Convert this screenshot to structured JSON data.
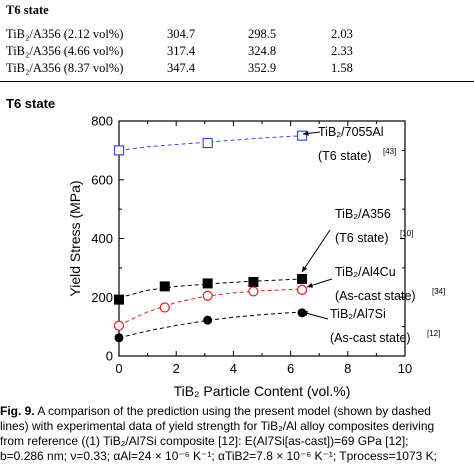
{
  "table": {
    "header": "T6 state",
    "rows": [
      {
        "name": "TiB₂/A356 (2.12 vol%)",
        "a": "304.7",
        "b": "298.5",
        "c": "2.03"
      },
      {
        "name": "TiB₂/A356 (4.66 vol%)",
        "a": "317.4",
        "b": "324.8",
        "c": "2.33"
      },
      {
        "name": "TiB₂/A356 (8.37 vol%)",
        "a": "347.4",
        "b": "352.9",
        "c": "1.58"
      }
    ]
  },
  "section_title": "T6 state",
  "chart_data": {
    "type": "scatter",
    "xlabel": "TiB₂ Particle Content (vol.%)",
    "ylabel": "Yield Stress (MPa)",
    "xlim": [
      0,
      10
    ],
    "ylim": [
      0,
      800
    ],
    "xticks": [
      "0",
      "2",
      "4",
      "6",
      "8",
      "10"
    ],
    "yticks": [
      "0",
      "200",
      "400",
      "600",
      "800"
    ],
    "series": [
      {
        "name": "TiB₂/7055Al (T6 state)[43]",
        "marker": "open-square",
        "color": "#3050e0",
        "x": [
          0,
          3.1,
          6.4
        ],
        "y": [
          700,
          725,
          750
        ],
        "model_x": [
          0,
          1,
          2,
          3,
          4,
          5,
          6.4
        ],
        "model_y": [
          700,
          712,
          720,
          727,
          735,
          742,
          750
        ]
      },
      {
        "name": "TiB₂/A356 (T6 state)[10]",
        "marker": "filled-square",
        "color": "#000000",
        "x": [
          0,
          1.6,
          3.1,
          4.7,
          6.4
        ],
        "y": [
          192,
          237,
          247,
          252,
          262
        ],
        "model_x": [
          0,
          1,
          2,
          3,
          4,
          5,
          6.4
        ],
        "model_y": [
          198,
          224,
          237,
          244,
          251,
          256,
          262
        ]
      },
      {
        "name": "TiB₂/Al4Cu (As-cast state)[34]",
        "marker": "open-circle",
        "color": "#e02020",
        "x": [
          0,
          1.6,
          3.1,
          4.7,
          6.4
        ],
        "y": [
          103,
          165,
          205,
          220,
          225
        ],
        "model_x": [
          0,
          1,
          2,
          3,
          4,
          5,
          6.4
        ],
        "model_y": [
          105,
          150,
          182,
          203,
          215,
          222,
          228
        ]
      },
      {
        "name": "TiB₂/Al7Si (As-cast state)[12]",
        "marker": "filled-circle",
        "color": "#000000",
        "x": [
          0,
          3.1,
          6.4
        ],
        "y": [
          62,
          122,
          147
        ],
        "model_x": [
          0,
          1,
          2,
          3,
          4,
          5,
          6.4
        ],
        "model_y": [
          62,
          85,
          104,
          120,
          132,
          141,
          150
        ]
      }
    ],
    "annotations": [
      {
        "line1": "TiB₂/7055Al",
        "line2": "(T6 state)",
        "ref": "[43]"
      },
      {
        "line1": "TiB₂/A356",
        "line2": "(T6 state)",
        "ref": "[10]"
      },
      {
        "line1": "TiB₂/Al4Cu",
        "line2": "(As-cast state)",
        "ref": "[34]"
      },
      {
        "line1": "TiB₂/Al7Si",
        "line2": "(As-cast state)",
        "ref": "[12]"
      }
    ]
  },
  "caption": {
    "label": "Fig. 9.",
    "lines": [
      "A comparison of the prediction using the present model (shown by dashed",
      "lines) with experimental data of yield strength for TiB₂/Al alloy composites deriving",
      "from reference ((1) TiB₂/Al7Si composite [12]: E(Al7Si[as-cast])=69 GPa [12];",
      "b=0.286 nm; ν=0.33; αAl=24 × 10⁻⁶ K⁻¹; αTiB2=7.8 × 10⁻⁶ K⁻¹; Tprocess=1073 K;"
    ]
  }
}
